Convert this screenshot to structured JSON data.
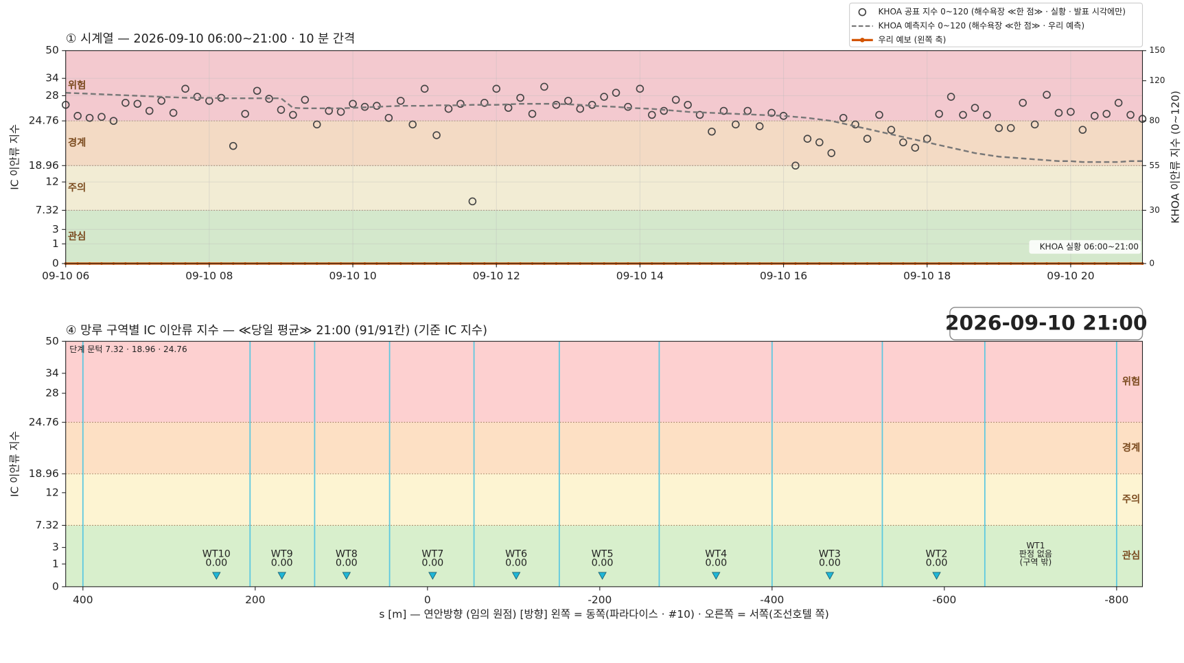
{
  "chart_data": [
    {
      "type": "scatter",
      "title": "① 시계열 — 2026-09-10 06:00~21:00 · 10 분 간격",
      "ylabel": "IC 이안류 지수",
      "y2label": "KHOA 이안류 지수 (0~120)",
      "annotation": "KHOA 실황 06:00~21:00",
      "grid": true,
      "legend": "upper right",
      "xlim": [
        360,
        1260
      ],
      "xticks": [
        {
          "value": 360,
          "label": "09-10 06"
        },
        {
          "value": 480,
          "label": "09-10 08"
        },
        {
          "value": 600,
          "label": "09-10 10"
        },
        {
          "value": 720,
          "label": "09-10 12"
        },
        {
          "value": 840,
          "label": "09-10 14"
        },
        {
          "value": 960,
          "label": "09-10 16"
        },
        {
          "value": 1080,
          "label": "09-10 18"
        },
        {
          "value": 1200,
          "label": "09-10 20"
        }
      ],
      "ylim": [
        0,
        50
      ],
      "yticks": [
        0,
        1,
        3,
        7.32,
        12,
        18.96,
        24.76,
        28,
        34,
        50
      ],
      "thresholds": [
        7.32,
        18.96,
        24.76
      ],
      "bands": [
        {
          "name": "관심",
          "color": "#d4e8cc"
        },
        {
          "name": "주의",
          "color": "#f2ecd4"
        },
        {
          "name": "경계",
          "color": "#f3dac4"
        },
        {
          "name": "위험",
          "color": "#f3c9cf"
        }
      ],
      "y2lim": [
        0,
        150
      ],
      "y2ticks": [
        0,
        30,
        55,
        80,
        120,
        150
      ],
      "y2thresholds": [
        30,
        55,
        80
      ],
      "x": [
        360,
        370,
        380,
        390,
        400,
        410,
        420,
        430,
        440,
        450,
        460,
        470,
        480,
        490,
        500,
        510,
        520,
        530,
        540,
        550,
        560,
        570,
        580,
        590,
        600,
        610,
        620,
        630,
        640,
        650,
        660,
        670,
        680,
        690,
        700,
        710,
        720,
        730,
        740,
        750,
        760,
        770,
        780,
        790,
        800,
        810,
        820,
        830,
        840,
        850,
        860,
        870,
        880,
        890,
        900,
        910,
        920,
        930,
        940,
        950,
        960,
        970,
        980,
        990,
        1000,
        1010,
        1020,
        1030,
        1040,
        1050,
        1060,
        1070,
        1080,
        1090,
        1100,
        1110,
        1120,
        1130,
        1140,
        1150,
        1160,
        1170,
        1180,
        1190,
        1200,
        1210,
        1220,
        1230,
        1240,
        1250,
        1260
      ],
      "series": [
        {
          "name": "KHOA 공표 지수 0~120 (해수욕장 ≪한 점≫ · 실황 · 발표 시각에만)",
          "type": "scatter",
          "axis": "y2",
          "color": "#444444",
          "values": [
            96,
            85,
            83,
            84,
            80,
            98,
            97,
            90,
            100,
            88,
            112,
            104,
            100,
            103,
            66,
            87,
            110,
            102,
            91,
            86,
            101,
            78,
            90,
            89,
            97,
            94,
            95,
            83,
            100,
            78,
            112,
            72,
            92,
            97,
            35,
            98,
            112,
            93,
            103,
            87,
            114,
            96,
            100,
            92,
            96,
            104,
            108,
            94,
            112,
            86,
            90,
            101,
            96,
            86,
            74,
            90,
            78,
            90,
            77,
            88,
            85,
            55,
            70,
            68,
            62,
            83,
            78,
            70,
            86,
            75,
            68,
            65,
            70,
            87,
            104,
            86,
            93,
            86,
            76,
            76,
            98,
            78,
            106,
            88,
            89,
            75,
            85,
            87,
            98,
            86,
            82
          ]
        },
        {
          "name": "KHOA 예측지수 0~120 (해수욕장 ≪한 점≫ · 우리 예측)",
          "type": "line",
          "dash": true,
          "axis": "y2",
          "color": "#777777",
          "values": [
            108,
            107.5,
            107,
            106.5,
            106,
            105.5,
            105,
            104.5,
            104,
            103.5,
            103,
            103,
            103,
            102.5,
            102.5,
            102.5,
            102.5,
            102.5,
            102.5,
            93,
            92.5,
            92.5,
            92.5,
            92.5,
            93,
            93.5,
            94,
            94.5,
            95,
            95,
            95,
            95.5,
            95.5,
            95.5,
            96,
            96,
            96,
            96.5,
            97,
            97,
            97,
            97,
            96.5,
            96,
            95,
            94.5,
            94,
            93,
            92.5,
            92,
            91,
            90,
            89,
            88.5,
            88,
            87.5,
            87,
            86.5,
            86,
            85.5,
            85,
            84,
            83,
            81.5,
            80,
            78.5,
            77,
            75.5,
            74,
            72.5,
            71,
            69.5,
            68,
            66.5,
            65,
            63.5,
            62,
            61,
            60,
            59.5,
            59,
            58.5,
            58,
            57.5,
            57.5,
            57,
            57,
            57,
            57,
            57.5,
            57.5
          ]
        },
        {
          "name": "우리 예보 (왼쪽 축)",
          "type": "line",
          "dash": false,
          "axis": "y",
          "color": "#d35400",
          "values": [
            0,
            0,
            0,
            0,
            0,
            0,
            0,
            0,
            0,
            0,
            0,
            0,
            0,
            0,
            0,
            0,
            0,
            0,
            0,
            0,
            0,
            0,
            0,
            0,
            0,
            0,
            0,
            0,
            0,
            0,
            0,
            0,
            0,
            0,
            0,
            0,
            0,
            0,
            0,
            0,
            0,
            0,
            0,
            0,
            0,
            0,
            0,
            0,
            0,
            0,
            0,
            0,
            0,
            0,
            0,
            0,
            0,
            0,
            0,
            0,
            0,
            0,
            0,
            0,
            0,
            0,
            0,
            0,
            0,
            0,
            0,
            0,
            0,
            0,
            0,
            0,
            0,
            0,
            0,
            0,
            0,
            0,
            0,
            0,
            0,
            0,
            0,
            0,
            0,
            0,
            0
          ]
        }
      ]
    },
    {
      "type": "zones",
      "title": "④ 망루 구역별 IC 이안류 지수 — ≪당일 평균≫ 21:00  (91/91칸)   (기준 IC 지수)",
      "timestamp": "2026-09-10  21:00",
      "note": "단계 문턱 7.32 · 18.96 · 24.76",
      "xlabel": "s [m] — 연안방향 (임의 원점)     [방향] 왼쪽 = 동쪽(파라다이스 · #10) · 오른쪽 = 서쪽(조선호텔 쪽)",
      "ylabel": "IC 이안류 지수",
      "xlim": [
        420,
        -830
      ],
      "xticks": [
        400,
        200,
        0,
        -200,
        -400,
        -600,
        -800
      ],
      "ylim": [
        0,
        50
      ],
      "yticks": [
        0,
        1,
        3,
        7.32,
        12,
        18.96,
        24.76,
        28,
        34,
        50
      ],
      "thresholds": [
        7.32,
        18.96,
        24.76
      ],
      "bands": [
        {
          "name": "관심",
          "color": "#d8efcc"
        },
        {
          "name": "주의",
          "color": "#fdf4d2"
        },
        {
          "name": "경계",
          "color": "#fde0c4"
        },
        {
          "name": "위험",
          "color": "#fdd0d0"
        }
      ],
      "boundaries": [
        400,
        206,
        131,
        44,
        -54,
        -153,
        -269,
        -400,
        -528,
        -647,
        -800
      ],
      "boundary_color": "#5bc8e0",
      "marker_color": "#1fb6d6",
      "categories": [
        "WT10",
        "WT9",
        "WT8",
        "WT7",
        "WT6",
        "WT5",
        "WT4",
        "WT3",
        "WT2",
        "WT1"
      ],
      "x": [
        245,
        169,
        94,
        -6,
        -103,
        -203,
        -335,
        -467,
        -591,
        -706
      ],
      "values": [
        0,
        0,
        0,
        0,
        0,
        0,
        0,
        0,
        0,
        null
      ],
      "value_labels": [
        "0.00",
        "0.00",
        "0.00",
        "0.00",
        "0.00",
        "0.00",
        "0.00",
        "0.00",
        "0.00",
        null
      ],
      "no_data_label": [
        "판정 없음",
        "(구역 밖)"
      ]
    }
  ]
}
